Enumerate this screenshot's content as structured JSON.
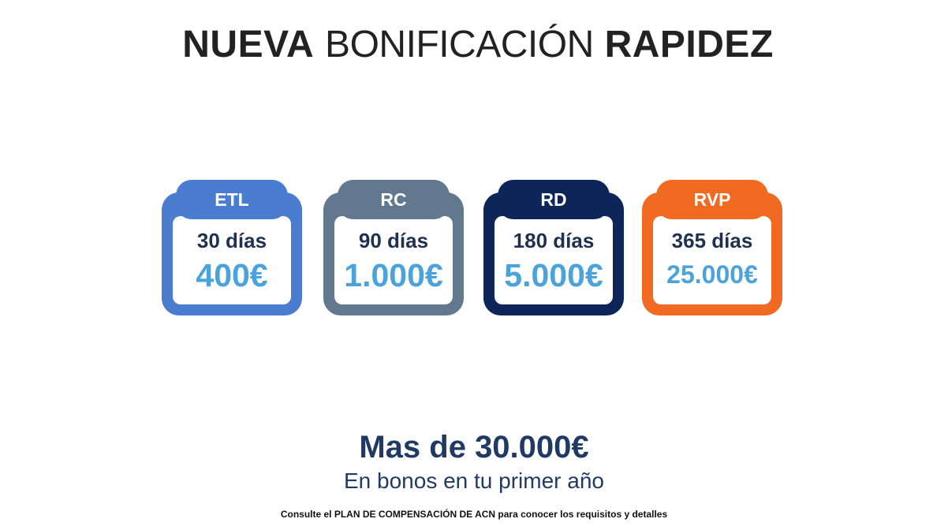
{
  "title": {
    "part1": "NUEVA",
    "part2": "BONIFICACIÓN",
    "part3": "RAPIDEZ"
  },
  "cards": [
    {
      "tab": "ETL",
      "days": "30 días",
      "amount": "400€",
      "color": "#4a7cd0"
    },
    {
      "tab": "RC",
      "days": "90 días",
      "amount": "1.000€",
      "color": "#61788e"
    },
    {
      "tab": "RD",
      "days": "180 días",
      "amount": "5.000€",
      "color": "#0d2559"
    },
    {
      "tab": "RVP",
      "days": "365 días",
      "amount": "25.000€",
      "color": "#f06a22"
    }
  ],
  "summary": {
    "headline": "Mas de 30.000€",
    "subline": "En bonos en tu primer año"
  },
  "footnote": "Consulte el PLAN DE COMPENSACIÓN DE ACN para conocer los requisitos y detalles",
  "colors": {
    "amount": "#4aa3dc",
    "days": "#1f3050",
    "headline": "#213a63"
  }
}
